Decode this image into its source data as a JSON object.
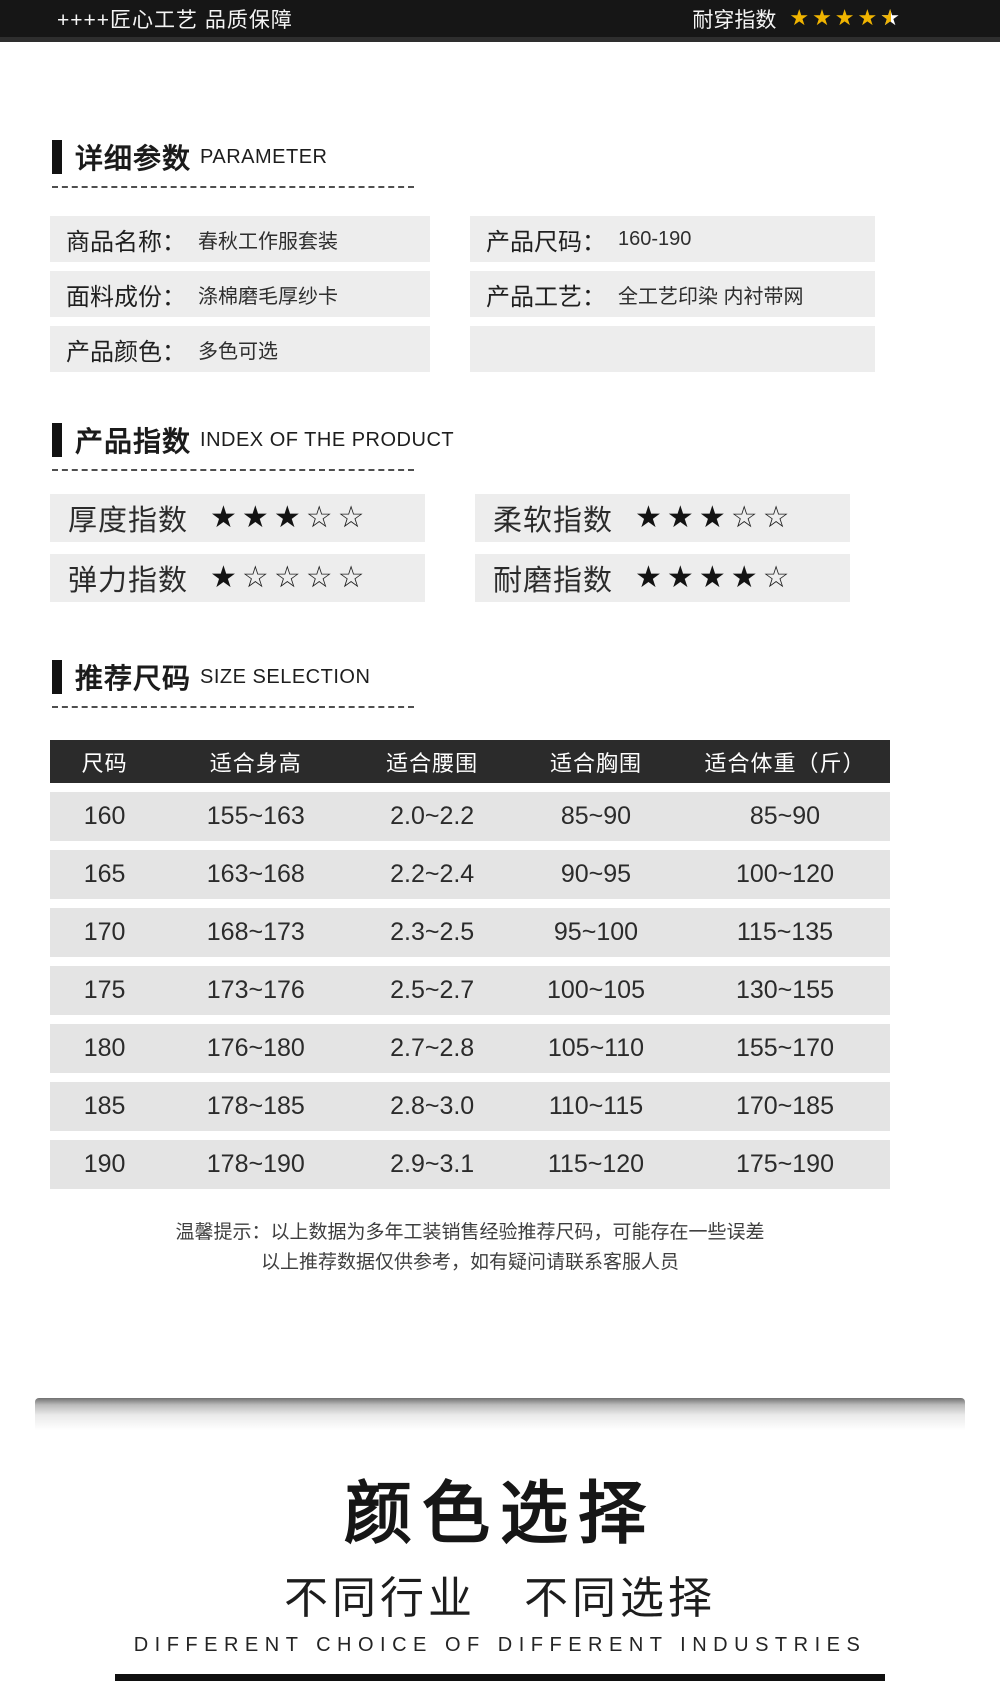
{
  "top_bar": {
    "left_text": "++++匠心工艺 品质保障",
    "right_label": "耐穿指数",
    "stars_full": 4,
    "stars_half": 1,
    "star_color": "#f0b400"
  },
  "sections": {
    "parameter": {
      "title": "详细参数",
      "subtitle": "PARAMETER"
    },
    "index": {
      "title": "产品指数",
      "subtitle": "INDEX OF THE PRODUCT"
    },
    "size": {
      "title": "推荐尺码",
      "subtitle": "SIZE SELECTION"
    }
  },
  "parameters": {
    "left": [
      {
        "label": "商品名称：",
        "value": "春秋工作服套装"
      },
      {
        "label": "面料成份：",
        "value": "涤棉磨毛厚纱卡"
      },
      {
        "label": "产品颜色：",
        "value": "多色可选"
      }
    ],
    "right": [
      {
        "label": "产品尺码：",
        "value": "160-190"
      },
      {
        "label": "产品工艺：",
        "value": "全工艺印染 内衬带网"
      },
      {
        "label": "",
        "value": ""
      }
    ]
  },
  "indices": [
    {
      "label": "厚度指数",
      "rating": 3
    },
    {
      "label": "柔软指数",
      "rating": 3
    },
    {
      "label": "弹力指数",
      "rating": 1
    },
    {
      "label": "耐磨指数",
      "rating": 4
    }
  ],
  "size_table": {
    "headers": [
      "尺码",
      "适合身高",
      "适合腰围",
      "适合胸围",
      "适合体重（斤）"
    ],
    "rows": [
      [
        "160",
        "155~163",
        "2.0~2.2",
        "85~90",
        "85~90"
      ],
      [
        "165",
        "163~168",
        "2.2~2.4",
        "90~95",
        "100~120"
      ],
      [
        "170",
        "168~173",
        "2.3~2.5",
        "95~100",
        "115~135"
      ],
      [
        "175",
        "173~176",
        "2.5~2.7",
        "100~105",
        "130~155"
      ],
      [
        "180",
        "176~180",
        "2.7~2.8",
        "105~110",
        "155~170"
      ],
      [
        "185",
        "178~185",
        "2.8~3.0",
        "110~115",
        "170~185"
      ],
      [
        "190",
        "178~190",
        "2.9~3.1",
        "115~120",
        "175~190"
      ]
    ]
  },
  "note": {
    "line1": "温馨提示：以上数据为多年工装销售经验推荐尺码，可能存在一些误差",
    "line2": "以上推荐数据仅供参考，如有疑问请联系客服人员"
  },
  "color_section": {
    "title": "颜色选择",
    "subtitle": "不同行业　不同选择",
    "subtitle_en": "DIFFERENT CHOICE OF DIFFERENT INDUSTRIES"
  }
}
